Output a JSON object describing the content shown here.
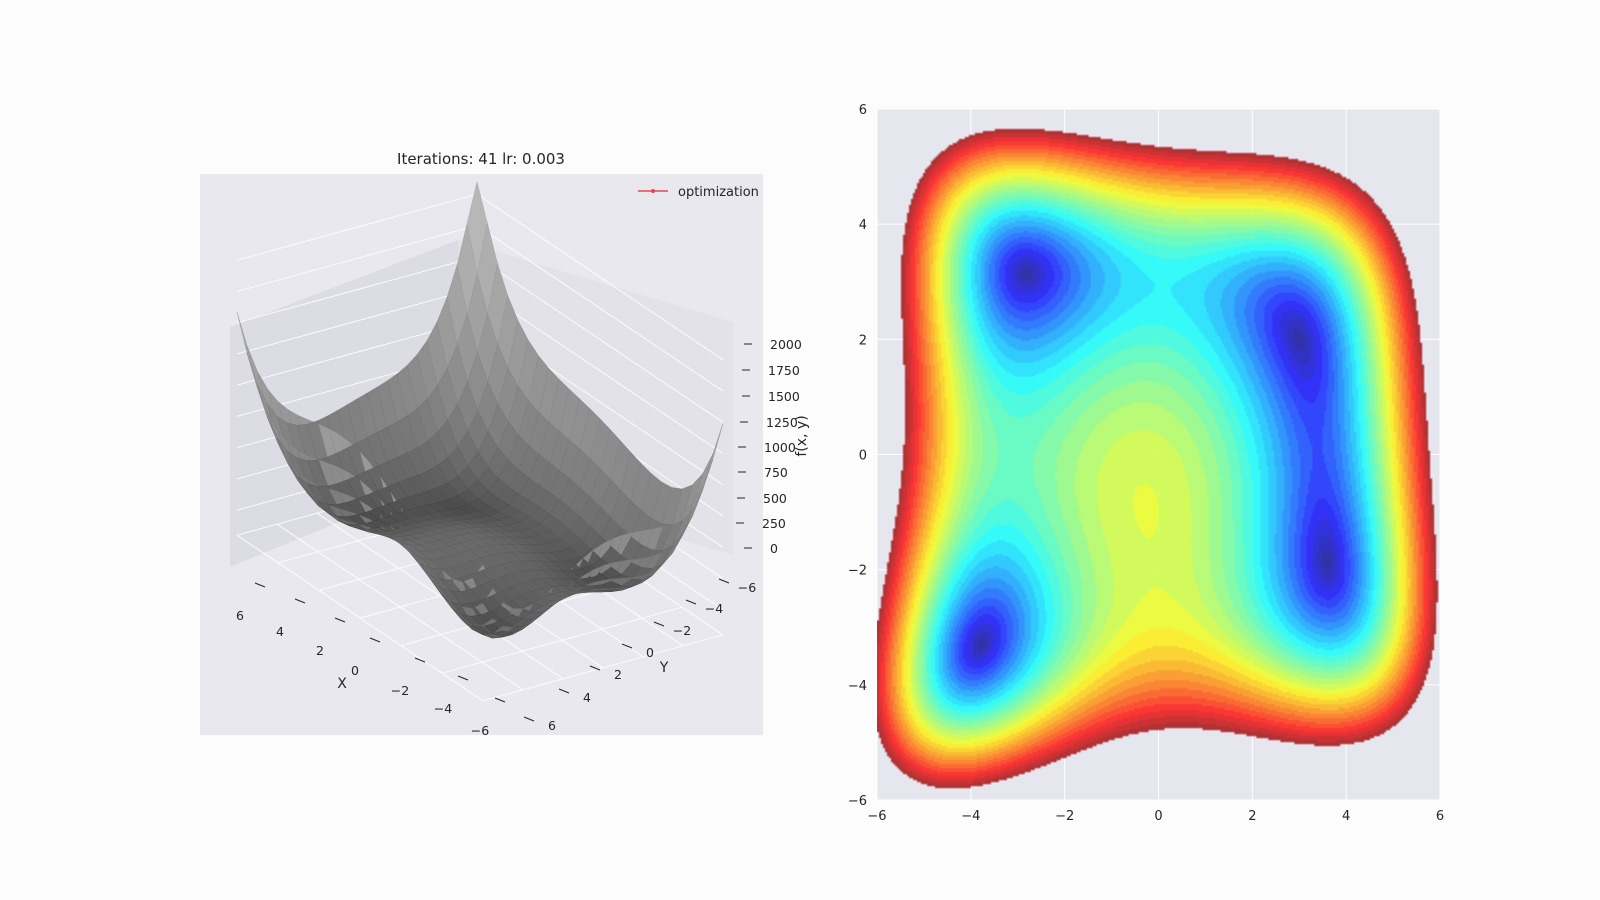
{
  "chart_data": [
    {
      "type": "surface",
      "title": "Iterations: 41 lr: 0.003",
      "xlabel": "X",
      "ylabel": "Y",
      "zlabel": "f(x, y)",
      "x_ticks": [
        "6",
        "4",
        "2",
        "0",
        "−2",
        "−4",
        "−6"
      ],
      "y_ticks": [
        "−6",
        "−4",
        "−2",
        "0",
        "2",
        "4",
        "6"
      ],
      "z_ticks": [
        "2000",
        "1750",
        "1500",
        "1250",
        "1000",
        "750",
        "500",
        "250",
        "0"
      ],
      "xlim": [
        -6,
        6
      ],
      "ylim": [
        -6,
        6
      ],
      "zlim": [
        0,
        2000
      ],
      "legend": [
        {
          "label": "optimization",
          "color": "#e8474b"
        }
      ],
      "legend_position": "top-right",
      "colormap": "gray",
      "grid": true
    },
    {
      "type": "contour",
      "function": "himmelblau",
      "colormap": "jet",
      "x_ticks": [
        "−6",
        "−4",
        "−2",
        "0",
        "2",
        "4",
        "6"
      ],
      "y_ticks": [
        "6",
        "4",
        "2",
        "0",
        "−2",
        "−4",
        "−6"
      ],
      "xlim": [
        -6,
        6
      ],
      "ylim": [
        -6,
        6
      ],
      "grid": true,
      "minima": [
        {
          "x": 3.0,
          "y": 2.0
        },
        {
          "x": -2.805,
          "y": 3.131
        },
        {
          "x": -3.779,
          "y": -3.283
        },
        {
          "x": 3.584,
          "y": -1.848
        }
      ]
    }
  ]
}
